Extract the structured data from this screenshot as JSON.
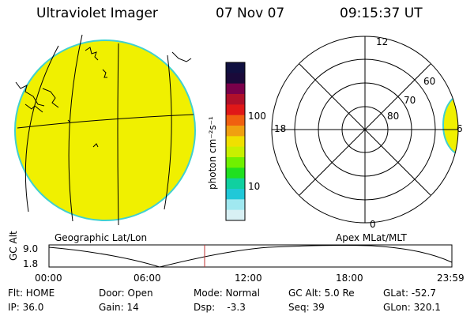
{
  "header": {
    "instrument": "Ultraviolet Imager",
    "date": "07 Nov 07",
    "time": "09:15:37 UT"
  },
  "colorbar": {
    "unit_label": "photon cm⁻²s⁻¹",
    "ticks": [
      "100",
      "10"
    ],
    "colors": [
      "#101040",
      "#1a0a3a",
      "#7a004a",
      "#b0102a",
      "#e01818",
      "#f06010",
      "#f0a010",
      "#f0e000",
      "#c8f000",
      "#70f000",
      "#20e020",
      "#10d0a0",
      "#20c8d8",
      "#a0e8f0",
      "#d8f0f4"
    ]
  },
  "geo_panel": {
    "label": "Geographic Lat/Lon",
    "fill_color": "#f0f000",
    "edge_color": "#40d0d0"
  },
  "apex_panel": {
    "label": "Apex MLat/MLT",
    "mlt_labels": {
      "top": "12",
      "left": "18",
      "right": "6",
      "bottom": "0"
    },
    "lat_labels": [
      "60",
      "70",
      "80"
    ]
  },
  "altitude_plot": {
    "ylabel": "GC Alt",
    "yticks": [
      "9.0",
      "1.8"
    ],
    "xticks": [
      "00:00",
      "06:00",
      "12:00",
      "18:00",
      "23:59"
    ],
    "marker_time": "09:15:37",
    "marker_color": "#c03030"
  },
  "info": {
    "flt": "Flt: HOME",
    "ip": "IP: 36.0",
    "door": "Door: Open",
    "gain": "Gain: 14",
    "mode": "Mode: Normal",
    "dsp": "Dsp:    -3.3",
    "gcalt": "GC Alt: 5.0 Re",
    "seq": "Seq: 39",
    "glat": "GLat: -52.7",
    "glon": "GLon: 320.1"
  }
}
